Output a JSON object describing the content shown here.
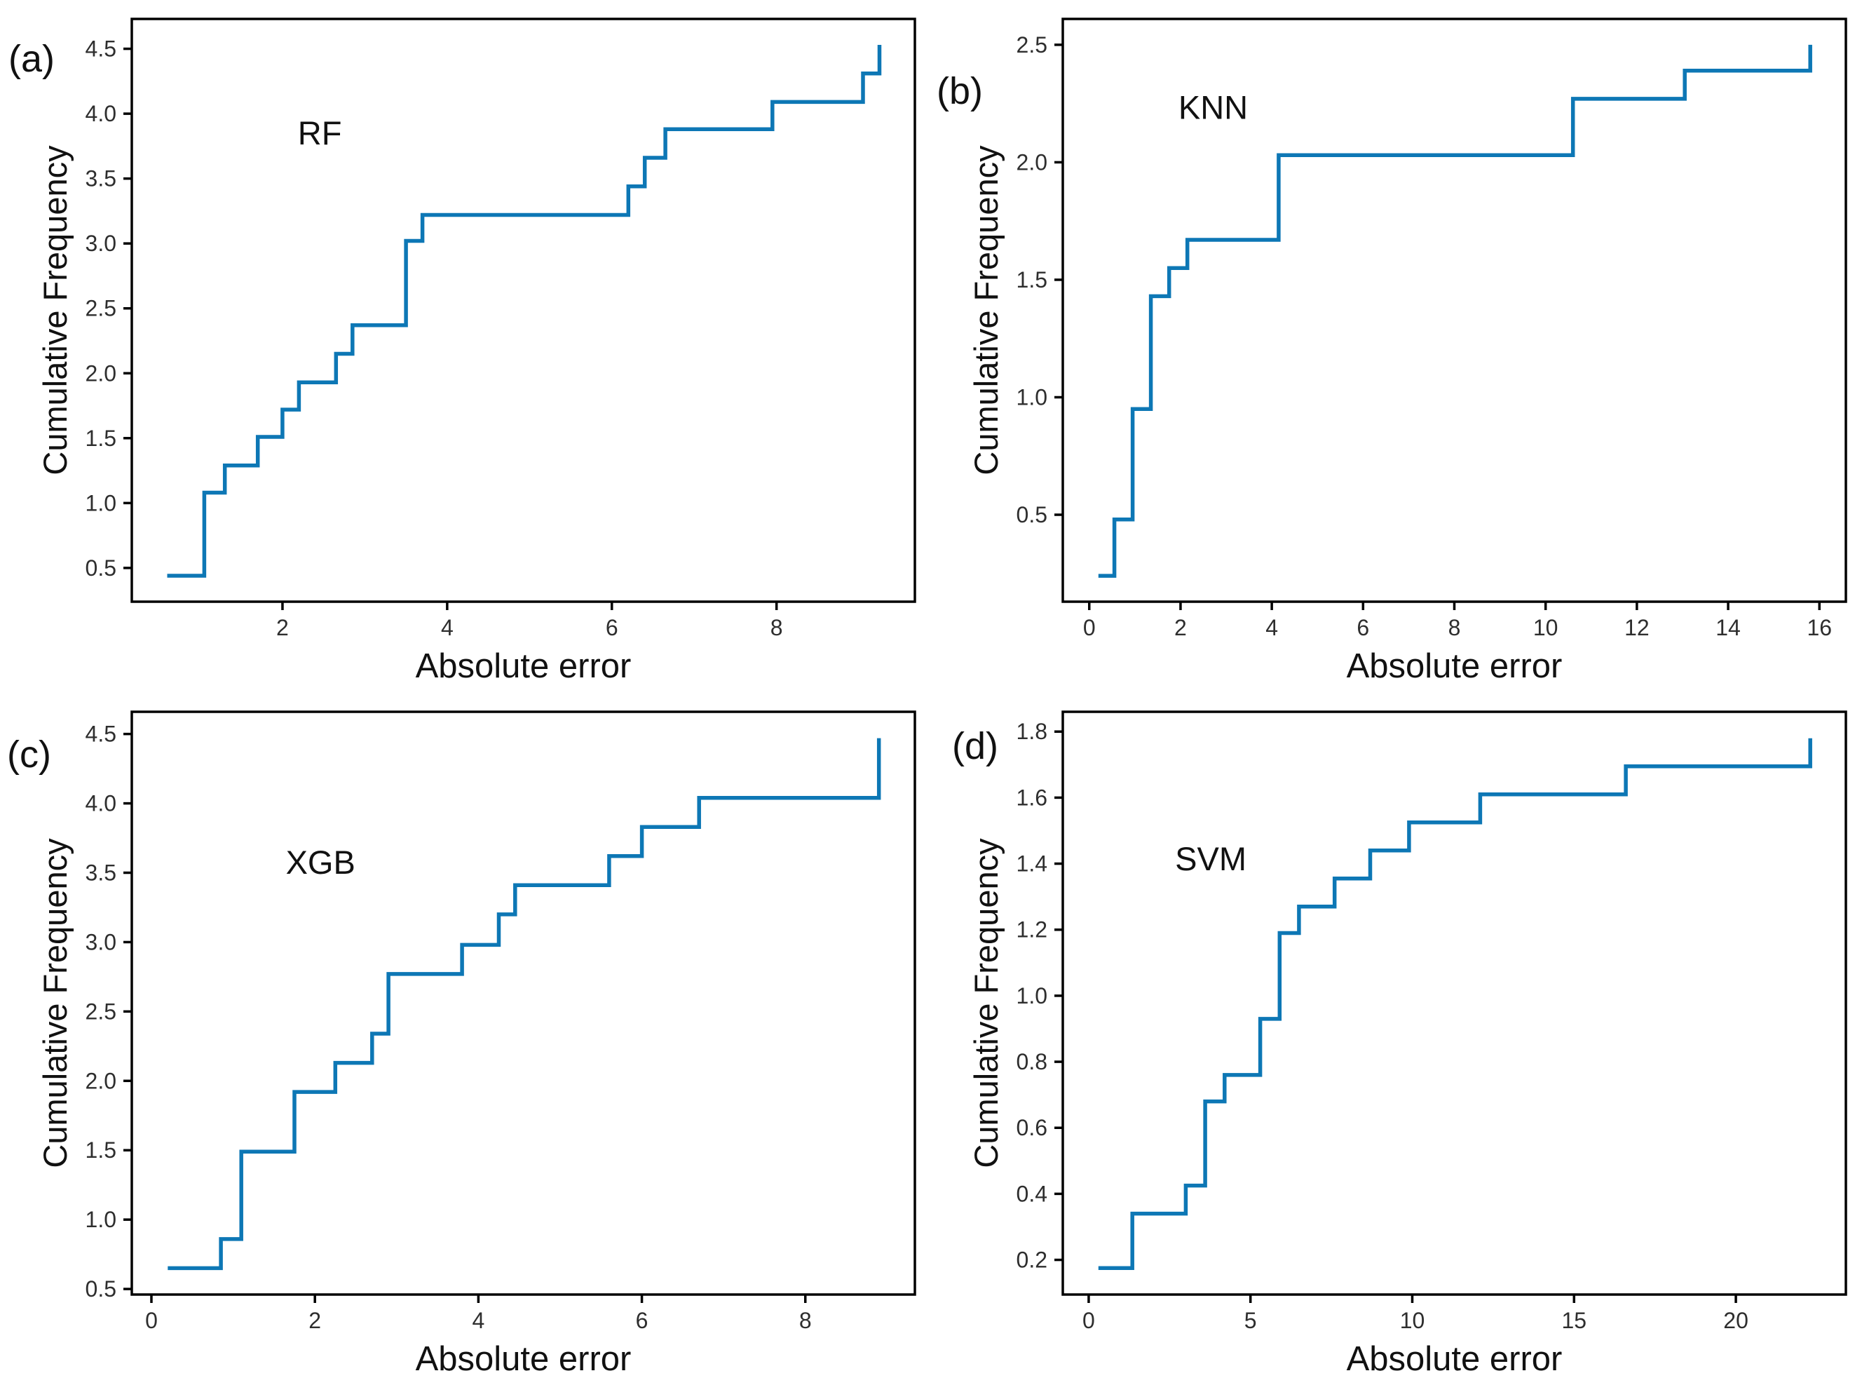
{
  "figure": {
    "background_color": "#ffffff",
    "style": {
      "line_color": "#0d77b5",
      "axes_color": "#000000",
      "tick_label_color": "#2e2e2e",
      "text_color": "#111111"
    }
  },
  "chart_data": [
    {
      "type": "line",
      "step": true,
      "panel_label": "(a)",
      "series_label": "RF",
      "xlabel": "Absolute error",
      "ylabel": "Cumulative Frequency",
      "x": [
        0.6,
        1.05,
        1.3,
        1.7,
        2.0,
        2.2,
        2.65,
        2.85,
        3.5,
        3.7,
        6.2,
        6.4,
        6.65,
        7.95,
        9.05,
        9.25
      ],
      "y": [
        0.44,
        1.08,
        1.29,
        1.51,
        1.72,
        1.93,
        2.15,
        2.37,
        3.02,
        3.22,
        3.44,
        3.66,
        3.88,
        4.09,
        4.31,
        4.53
      ],
      "xlim": [
        0.17,
        9.68
      ],
      "ylim": [
        0.24,
        4.73
      ],
      "x_tick_values": [
        2,
        4,
        6,
        8
      ],
      "x_tick_labels": [
        "2",
        "4",
        "6",
        "8"
      ],
      "y_tick_values": [
        0.5,
        1.0,
        1.5,
        2.0,
        2.5,
        3.0,
        3.5,
        4.0,
        4.5
      ],
      "y_tick_labels": [
        "0.5",
        "1.0",
        "1.5",
        "2.0",
        "2.5",
        "3.0",
        "3.5",
        "4.0",
        "4.5"
      ],
      "grid": false,
      "legend": "none",
      "series_label_pos": {
        "fx": 0.24,
        "fy": 0.196
      },
      "panel_label_pos": {
        "x": 12,
        "y": 102
      }
    },
    {
      "type": "line",
      "step": true,
      "panel_label": "(b)",
      "series_label": "KNN",
      "xlabel": "Absolute error",
      "ylabel": "Cumulative Frequency",
      "x": [
        0.2,
        0.55,
        0.95,
        1.35,
        1.75,
        2.15,
        4.15,
        10.6,
        13.05,
        15.8
      ],
      "y": [
        0.24,
        0.48,
        0.95,
        1.43,
        1.55,
        1.67,
        2.03,
        2.27,
        2.39,
        2.5
      ],
      "xlim": [
        -0.58,
        16.58
      ],
      "ylim": [
        0.13,
        2.61
      ],
      "x_tick_values": [
        0,
        2,
        4,
        6,
        8,
        10,
        12,
        14,
        16
      ],
      "x_tick_labels": [
        "0",
        "2",
        "4",
        "6",
        "8",
        "10",
        "12",
        "14",
        "16"
      ],
      "y_tick_values": [
        0.5,
        1.0,
        1.5,
        2.0,
        2.5
      ],
      "y_tick_labels": [
        "0.5",
        "1.0",
        "1.5",
        "2.0",
        "2.5"
      ],
      "grid": false,
      "legend": "none",
      "series_label_pos": {
        "fx": 0.192,
        "fy": 0.152
      },
      "panel_label_pos": {
        "x": 8,
        "y": 148
      }
    },
    {
      "type": "line",
      "step": true,
      "panel_label": "(c)",
      "series_label": "XGB",
      "xlabel": "Absolute error",
      "ylabel": "Cumulative Frequency",
      "x": [
        0.2,
        0.85,
        1.1,
        1.75,
        2.25,
        2.7,
        2.9,
        3.8,
        4.25,
        4.45,
        5.6,
        6.0,
        6.7,
        8.9
      ],
      "y": [
        0.65,
        0.86,
        1.49,
        1.92,
        2.13,
        2.34,
        2.77,
        2.98,
        3.2,
        3.41,
        3.62,
        3.83,
        4.04,
        4.47
      ],
      "xlim": [
        -0.24,
        9.34
      ],
      "ylim": [
        0.46,
        4.66
      ],
      "x_tick_values": [
        0,
        2,
        4,
        6,
        8
      ],
      "x_tick_labels": [
        "0",
        "2",
        "4",
        "6",
        "8"
      ],
      "y_tick_values": [
        0.5,
        1.0,
        1.5,
        2.0,
        2.5,
        3.0,
        3.5,
        4.0,
        4.5
      ],
      "y_tick_labels": [
        "0.5",
        "1.0",
        "1.5",
        "2.0",
        "2.5",
        "3.0",
        "3.5",
        "4.0",
        "4.5"
      ],
      "grid": false,
      "legend": "none",
      "series_label_pos": {
        "fx": 0.241,
        "fy": 0.259
      },
      "panel_label_pos": {
        "x": 10,
        "y": 106
      }
    },
    {
      "type": "line",
      "step": true,
      "panel_label": "(d)",
      "series_label": "SVM",
      "xlabel": "Absolute error",
      "ylabel": "Cumulative Frequency",
      "x": [
        0.3,
        1.35,
        3.0,
        3.6,
        4.2,
        5.3,
        5.9,
        6.5,
        7.6,
        8.7,
        9.9,
        12.1,
        16.6,
        22.3
      ],
      "y": [
        0.175,
        0.34,
        0.425,
        0.68,
        0.76,
        0.93,
        1.19,
        1.27,
        1.355,
        1.44,
        1.525,
        1.61,
        1.695,
        1.78
      ],
      "xlim": [
        -0.8,
        23.4
      ],
      "ylim": [
        0.095,
        1.86
      ],
      "x_tick_values": [
        0,
        5,
        10,
        15,
        20
      ],
      "x_tick_labels": [
        "0",
        "5",
        "10",
        "15",
        "20"
      ],
      "y_tick_values": [
        0.2,
        0.4,
        0.6,
        0.8,
        1.0,
        1.2,
        1.4,
        1.6,
        1.8
      ],
      "y_tick_labels": [
        "0.2",
        "0.4",
        "0.6",
        "0.8",
        "1.0",
        "1.2",
        "1.4",
        "1.6",
        "1.8"
      ],
      "grid": false,
      "legend": "none",
      "series_label_pos": {
        "fx": 0.189,
        "fy": 0.253
      },
      "panel_label_pos": {
        "x": 30,
        "y": 94
      }
    }
  ]
}
